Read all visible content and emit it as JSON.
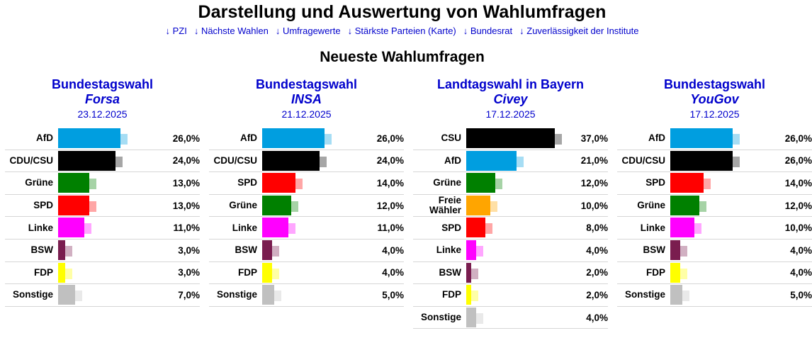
{
  "page": {
    "title": "Darstellung und Auswertung von Wahlumfragen",
    "nav": [
      "↓ PZI",
      "↓ Nächste Wahlen",
      "↓ Umfragewerte",
      "↓ Stärkste Parteien (Karte)",
      "↓ Bundesrat",
      "↓ Zuverlässigkeit der Institute"
    ],
    "section_title": "Neueste Wahlumfragen"
  },
  "chart_data": [
    {
      "type": "bar",
      "title": "Bundestagswahl",
      "institute": "Forsa",
      "date": "23.12.2025",
      "categories": [
        "AfD",
        "CDU/CSU",
        "Grüne",
        "SPD",
        "Linke",
        "BSW",
        "FDP",
        "Sonstige"
      ],
      "values": [
        26,
        24,
        13,
        13,
        11,
        3,
        3,
        7
      ],
      "value_labels": [
        "26,0%",
        "24,0%",
        "13,0%",
        "13,0%",
        "11,0%",
        "3,0%",
        "3,0%",
        "7,0%"
      ],
      "colors": [
        "#009ee0",
        "#000000",
        "#008000",
        "#ff0000",
        "#ff00ff",
        "#7a1d4f",
        "#ffff00",
        "#c0c0c0"
      ]
    },
    {
      "type": "bar",
      "title": "Bundestagswahl",
      "institute": "INSA",
      "date": "21.12.2025",
      "categories": [
        "AfD",
        "CDU/CSU",
        "SPD",
        "Grüne",
        "Linke",
        "BSW",
        "FDP",
        "Sonstige"
      ],
      "values": [
        26,
        24,
        14,
        12,
        11,
        4,
        4,
        5
      ],
      "value_labels": [
        "26,0%",
        "24,0%",
        "14,0%",
        "12,0%",
        "11,0%",
        "4,0%",
        "4,0%",
        "5,0%"
      ],
      "colors": [
        "#009ee0",
        "#000000",
        "#ff0000",
        "#008000",
        "#ff00ff",
        "#7a1d4f",
        "#ffff00",
        "#c0c0c0"
      ]
    },
    {
      "type": "bar",
      "title": "Landtagswahl in Bayern",
      "institute": "Civey",
      "date": "17.12.2025",
      "categories": [
        "CSU",
        "AfD",
        "Grüne",
        "Freie Wähler",
        "SPD",
        "Linke",
        "BSW",
        "FDP",
        "Sonstige"
      ],
      "values": [
        37,
        21,
        12,
        10,
        8,
        4,
        2,
        2,
        4
      ],
      "value_labels": [
        "37,0%",
        "21,0%",
        "12,0%",
        "10,0%",
        "8,0%",
        "4,0%",
        "2,0%",
        "2,0%",
        "4,0%"
      ],
      "colors": [
        "#000000",
        "#009ee0",
        "#008000",
        "#ffa500",
        "#ff0000",
        "#ff00ff",
        "#7a1d4f",
        "#ffff00",
        "#c0c0c0"
      ]
    },
    {
      "type": "bar",
      "title": "Bundestagswahl",
      "institute": "YouGov",
      "date": "17.12.2025",
      "categories": [
        "AfD",
        "CDU/CSU",
        "SPD",
        "Grüne",
        "Linke",
        "BSW",
        "FDP",
        "Sonstige"
      ],
      "values": [
        26,
        26,
        14,
        12,
        10,
        4,
        4,
        5
      ],
      "value_labels": [
        "26,0%",
        "26,0%",
        "14,0%",
        "12,0%",
        "10,0%",
        "4,0%",
        "4,0%",
        "5,0%"
      ],
      "colors": [
        "#009ee0",
        "#000000",
        "#ff0000",
        "#008000",
        "#ff00ff",
        "#7a1d4f",
        "#ffff00",
        "#c0c0c0"
      ]
    }
  ]
}
